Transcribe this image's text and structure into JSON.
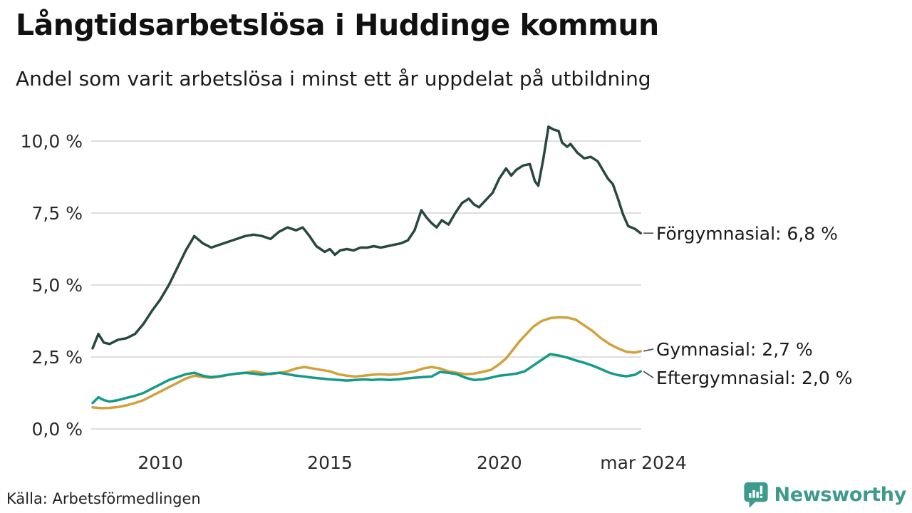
{
  "header": {
    "title": "Långtidsarbetslösa i Huddinge kommun",
    "subtitle": "Andel som varit arbetslösa i minst ett år uppdelat på utbildning"
  },
  "footer": {
    "source": "Källa: Arbetsförmedlingen",
    "brand": "Newsworthy",
    "brand_color": "#3d9a8c",
    "logo_icon": "newsworthy-speech-bubble-bar-chart-icon"
  },
  "chart_data": {
    "type": "line",
    "title": "Långtidsarbetslösa i Huddinge kommun",
    "subtitle": "Andel som varit arbetslösa i minst ett år uppdelat på utbildning",
    "unit": "%",
    "grid": "horizontal",
    "gridline_color": "#dedede",
    "legend_position": "end-of-line-labels",
    "x_axis": {
      "range": [
        2008,
        2024.25
      ],
      "ticks": [
        {
          "value": 2010,
          "label": "2010"
        },
        {
          "value": 2015,
          "label": "2015"
        },
        {
          "value": 2020,
          "label": "2020"
        },
        {
          "value": 2024.25,
          "label": "mar 2024"
        }
      ]
    },
    "y_axis": {
      "range": [
        0,
        10
      ],
      "ticks": [
        {
          "value": 0,
          "label": "0,0 %"
        },
        {
          "value": 2.5,
          "label": "2,5 %"
        },
        {
          "value": 5,
          "label": "5,0 %"
        },
        {
          "value": 7.5,
          "label": "7,5 %"
        },
        {
          "value": 10,
          "label": "10,0 %"
        }
      ]
    },
    "series": [
      {
        "name": "Förgymnasial",
        "end_label": "Förgymnasial: 6,8 %",
        "last_value": "6,8 %",
        "color": "#274741",
        "label_dy": 0,
        "points": [
          [
            2008,
            2.8
          ],
          [
            2008.17,
            3.3
          ],
          [
            2008.33,
            3.0
          ],
          [
            2008.5,
            2.95
          ],
          [
            2008.75,
            3.1
          ],
          [
            2009,
            3.15
          ],
          [
            2009.25,
            3.3
          ],
          [
            2009.5,
            3.65
          ],
          [
            2009.75,
            4.1
          ],
          [
            2010,
            4.5
          ],
          [
            2010.25,
            5.0
          ],
          [
            2010.5,
            5.6
          ],
          [
            2010.75,
            6.2
          ],
          [
            2011,
            6.7
          ],
          [
            2011.25,
            6.45
          ],
          [
            2011.5,
            6.3
          ],
          [
            2011.75,
            6.4
          ],
          [
            2012,
            6.5
          ],
          [
            2012.25,
            6.6
          ],
          [
            2012.5,
            6.7
          ],
          [
            2012.75,
            6.75
          ],
          [
            2013,
            6.7
          ],
          [
            2013.25,
            6.6
          ],
          [
            2013.5,
            6.85
          ],
          [
            2013.75,
            7.0
          ],
          [
            2014,
            6.9
          ],
          [
            2014.2,
            7.0
          ],
          [
            2014.4,
            6.7
          ],
          [
            2014.6,
            6.35
          ],
          [
            2014.85,
            6.15
          ],
          [
            2015,
            6.25
          ],
          [
            2015.15,
            6.05
          ],
          [
            2015.3,
            6.2
          ],
          [
            2015.5,
            6.25
          ],
          [
            2015.7,
            6.2
          ],
          [
            2015.9,
            6.3
          ],
          [
            2016.1,
            6.3
          ],
          [
            2016.3,
            6.35
          ],
          [
            2016.5,
            6.3
          ],
          [
            2016.7,
            6.35
          ],
          [
            2016.9,
            6.4
          ],
          [
            2017.1,
            6.45
          ],
          [
            2017.3,
            6.55
          ],
          [
            2017.5,
            6.9
          ],
          [
            2017.7,
            7.6
          ],
          [
            2017.85,
            7.35
          ],
          [
            2018,
            7.15
          ],
          [
            2018.15,
            7.0
          ],
          [
            2018.3,
            7.25
          ],
          [
            2018.5,
            7.1
          ],
          [
            2018.7,
            7.5
          ],
          [
            2018.9,
            7.85
          ],
          [
            2019.1,
            8.0
          ],
          [
            2019.25,
            7.8
          ],
          [
            2019.4,
            7.7
          ],
          [
            2019.6,
            7.95
          ],
          [
            2019.8,
            8.2
          ],
          [
            2020,
            8.7
          ],
          [
            2020.2,
            9.05
          ],
          [
            2020.35,
            8.8
          ],
          [
            2020.5,
            9.0
          ],
          [
            2020.7,
            9.15
          ],
          [
            2020.9,
            9.2
          ],
          [
            2021.05,
            8.6
          ],
          [
            2021.15,
            8.45
          ],
          [
            2021.3,
            9.4
          ],
          [
            2021.45,
            10.5
          ],
          [
            2021.6,
            10.4
          ],
          [
            2021.75,
            10.35
          ],
          [
            2021.85,
            9.95
          ],
          [
            2022,
            9.8
          ],
          [
            2022.1,
            9.9
          ],
          [
            2022.3,
            9.6
          ],
          [
            2022.5,
            9.4
          ],
          [
            2022.7,
            9.45
          ],
          [
            2022.9,
            9.3
          ],
          [
            2023.05,
            9.0
          ],
          [
            2023.2,
            8.7
          ],
          [
            2023.35,
            8.5
          ],
          [
            2023.5,
            8.0
          ],
          [
            2023.65,
            7.45
          ],
          [
            2023.8,
            7.05
          ],
          [
            2024,
            6.95
          ],
          [
            2024.17,
            6.8
          ]
        ]
      },
      {
        "name": "Gymnasial",
        "end_label": "Gymnasial: 2,7 %",
        "last_value": "2,7 %",
        "color": "#d2a03c",
        "label_dy": -3,
        "points": [
          [
            2008,
            0.75
          ],
          [
            2008.25,
            0.72
          ],
          [
            2008.5,
            0.73
          ],
          [
            2008.75,
            0.76
          ],
          [
            2009,
            0.82
          ],
          [
            2009.25,
            0.9
          ],
          [
            2009.5,
            1.0
          ],
          [
            2009.75,
            1.15
          ],
          [
            2010,
            1.3
          ],
          [
            2010.25,
            1.45
          ],
          [
            2010.5,
            1.6
          ],
          [
            2010.75,
            1.75
          ],
          [
            2011,
            1.85
          ],
          [
            2011.25,
            1.8
          ],
          [
            2011.5,
            1.78
          ],
          [
            2011.75,
            1.82
          ],
          [
            2012,
            1.88
          ],
          [
            2012.25,
            1.92
          ],
          [
            2012.5,
            1.95
          ],
          [
            2012.75,
            2.0
          ],
          [
            2013,
            1.95
          ],
          [
            2013.25,
            1.9
          ],
          [
            2013.5,
            1.95
          ],
          [
            2013.75,
            2.0
          ],
          [
            2014,
            2.1
          ],
          [
            2014.25,
            2.15
          ],
          [
            2014.5,
            2.1
          ],
          [
            2014.75,
            2.05
          ],
          [
            2015,
            2.0
          ],
          [
            2015.25,
            1.9
          ],
          [
            2015.5,
            1.85
          ],
          [
            2015.75,
            1.82
          ],
          [
            2016,
            1.85
          ],
          [
            2016.25,
            1.88
          ],
          [
            2016.5,
            1.9
          ],
          [
            2016.75,
            1.88
          ],
          [
            2017,
            1.9
          ],
          [
            2017.25,
            1.95
          ],
          [
            2017.5,
            2.0
          ],
          [
            2017.75,
            2.1
          ],
          [
            2018,
            2.15
          ],
          [
            2018.25,
            2.1
          ],
          [
            2018.5,
            2.0
          ],
          [
            2018.75,
            1.95
          ],
          [
            2019,
            1.9
          ],
          [
            2019.25,
            1.92
          ],
          [
            2019.5,
            1.98
          ],
          [
            2019.75,
            2.05
          ],
          [
            2020,
            2.25
          ],
          [
            2020.2,
            2.45
          ],
          [
            2020.4,
            2.75
          ],
          [
            2020.6,
            3.05
          ],
          [
            2020.8,
            3.3
          ],
          [
            2021,
            3.55
          ],
          [
            2021.25,
            3.75
          ],
          [
            2021.5,
            3.85
          ],
          [
            2021.75,
            3.88
          ],
          [
            2022,
            3.87
          ],
          [
            2022.25,
            3.8
          ],
          [
            2022.5,
            3.6
          ],
          [
            2022.75,
            3.4
          ],
          [
            2023,
            3.15
          ],
          [
            2023.25,
            2.95
          ],
          [
            2023.5,
            2.8
          ],
          [
            2023.75,
            2.68
          ],
          [
            2024,
            2.65
          ],
          [
            2024.17,
            2.7
          ]
        ]
      },
      {
        "name": "Eftergymnasial",
        "end_label": "Eftergymnasial: 2,0 %",
        "last_value": "2,0 %",
        "color": "#149a89",
        "label_dy": 9,
        "points": [
          [
            2008,
            0.9
          ],
          [
            2008.17,
            1.1
          ],
          [
            2008.33,
            1.0
          ],
          [
            2008.5,
            0.95
          ],
          [
            2008.75,
            1.0
          ],
          [
            2009,
            1.08
          ],
          [
            2009.25,
            1.15
          ],
          [
            2009.5,
            1.25
          ],
          [
            2009.75,
            1.4
          ],
          [
            2010,
            1.55
          ],
          [
            2010.25,
            1.7
          ],
          [
            2010.5,
            1.8
          ],
          [
            2010.75,
            1.9
          ],
          [
            2011,
            1.95
          ],
          [
            2011.25,
            1.85
          ],
          [
            2011.5,
            1.8
          ],
          [
            2011.75,
            1.83
          ],
          [
            2012,
            1.88
          ],
          [
            2012.25,
            1.92
          ],
          [
            2012.5,
            1.95
          ],
          [
            2012.75,
            1.92
          ],
          [
            2013,
            1.88
          ],
          [
            2013.25,
            1.92
          ],
          [
            2013.5,
            1.95
          ],
          [
            2013.75,
            1.9
          ],
          [
            2014,
            1.85
          ],
          [
            2014.25,
            1.82
          ],
          [
            2014.5,
            1.78
          ],
          [
            2014.75,
            1.75
          ],
          [
            2015,
            1.72
          ],
          [
            2015.25,
            1.7
          ],
          [
            2015.5,
            1.68
          ],
          [
            2015.75,
            1.7
          ],
          [
            2016,
            1.72
          ],
          [
            2016.25,
            1.7
          ],
          [
            2016.5,
            1.72
          ],
          [
            2016.75,
            1.7
          ],
          [
            2017,
            1.72
          ],
          [
            2017.25,
            1.75
          ],
          [
            2017.5,
            1.78
          ],
          [
            2017.75,
            1.8
          ],
          [
            2018,
            1.82
          ],
          [
            2018.25,
            1.98
          ],
          [
            2018.5,
            1.95
          ],
          [
            2018.75,
            1.9
          ],
          [
            2019,
            1.78
          ],
          [
            2019.25,
            1.7
          ],
          [
            2019.5,
            1.72
          ],
          [
            2019.75,
            1.78
          ],
          [
            2020,
            1.85
          ],
          [
            2020.25,
            1.88
          ],
          [
            2020.5,
            1.92
          ],
          [
            2020.75,
            2.0
          ],
          [
            2021,
            2.2
          ],
          [
            2021.25,
            2.4
          ],
          [
            2021.5,
            2.6
          ],
          [
            2021.75,
            2.55
          ],
          [
            2022,
            2.48
          ],
          [
            2022.25,
            2.38
          ],
          [
            2022.5,
            2.3
          ],
          [
            2022.75,
            2.2
          ],
          [
            2023,
            2.08
          ],
          [
            2023.25,
            1.95
          ],
          [
            2023.5,
            1.87
          ],
          [
            2023.75,
            1.83
          ],
          [
            2024,
            1.88
          ],
          [
            2024.17,
            2.0
          ]
        ]
      }
    ]
  }
}
